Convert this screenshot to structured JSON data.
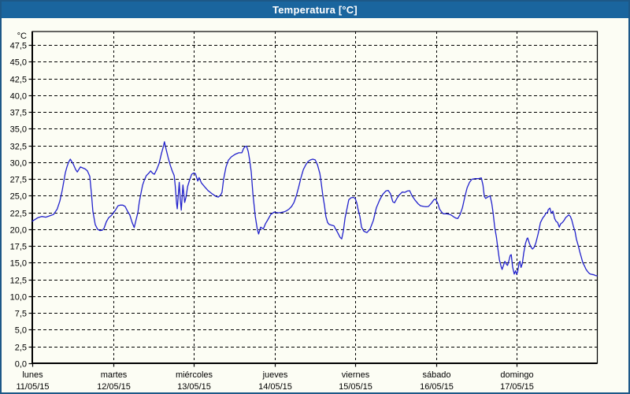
{
  "window": {
    "title": "Temperatura [°C]"
  },
  "colors": {
    "titlebar_bg": "#1a659e",
    "titlebar_text": "#ffffff",
    "window_border": "#1d5887",
    "background": "#fcfdf4",
    "plot_border": "#000000",
    "gridline": "#000000",
    "series_line": "#2222cc",
    "label_text": "#000000"
  },
  "chart_data": {
    "type": "line",
    "title": "Temperatura [°C]",
    "legend": "none",
    "y_axis": {
      "unit_label": "°C",
      "min": 0,
      "max": 49.5,
      "tick_step": 2.5,
      "grid": "dashed",
      "tick_values": [
        0,
        2.5,
        5,
        7.5,
        10,
        12.5,
        15,
        17.5,
        20,
        22.5,
        25,
        27.5,
        30,
        32.5,
        35,
        37.5,
        40,
        42.5,
        45,
        47.5
      ],
      "tick_labels": [
        "0,0",
        "2,5",
        "5,0",
        "7,5",
        "10,0",
        "12,5",
        "15,0",
        "17,5",
        "20,0",
        "22,5",
        "25,0",
        "27,5",
        "30,0",
        "32,5",
        "35,0",
        "37,5",
        "40,0",
        "42,5",
        "45,0",
        "47,5"
      ]
    },
    "x_axis": {
      "range_hours": [
        0,
        168
      ],
      "tick_interval_hours": 24,
      "grid": "dashed",
      "ticks": [
        {
          "hour": 0,
          "day": "lunes",
          "date": "11/05/15"
        },
        {
          "hour": 24,
          "day": "martes",
          "date": "12/05/15"
        },
        {
          "hour": 48,
          "day": "miércoles",
          "date": "13/05/15"
        },
        {
          "hour": 72,
          "day": "jueves",
          "date": "14/05/15"
        },
        {
          "hour": 96,
          "day": "viernes",
          "date": "15/05/15"
        },
        {
          "hour": 120,
          "day": "sábado",
          "date": "16/05/15"
        },
        {
          "hour": 144,
          "day": "domingo",
          "date": "17/05/15"
        }
      ]
    },
    "series": [
      {
        "name": "Temperatura",
        "unit": "°C",
        "color": "#2222cc",
        "points": [
          [
            0.0,
            21.2
          ],
          [
            1.6,
            21.7
          ],
          [
            2.8,
            21.9
          ],
          [
            4.0,
            21.8
          ],
          [
            5.2,
            22.0
          ],
          [
            6.3,
            22.2
          ],
          [
            7.4,
            23.0
          ],
          [
            8.2,
            24.2
          ],
          [
            8.9,
            25.8
          ],
          [
            9.4,
            27.2
          ],
          [
            9.8,
            28.4
          ],
          [
            10.3,
            29.3
          ],
          [
            10.8,
            30.0
          ],
          [
            11.3,
            30.45
          ],
          [
            12.2,
            29.7
          ],
          [
            12.9,
            28.9
          ],
          [
            13.4,
            28.55
          ],
          [
            14.3,
            29.3
          ],
          [
            15.0,
            29.15
          ],
          [
            15.7,
            29.0
          ],
          [
            16.4,
            28.7
          ],
          [
            17.1,
            27.9
          ],
          [
            17.6,
            25.2
          ],
          [
            18.0,
            22.7
          ],
          [
            18.7,
            20.7
          ],
          [
            19.4,
            20.0
          ],
          [
            20.1,
            19.8
          ],
          [
            20.8,
            19.85
          ],
          [
            21.3,
            20.1
          ],
          [
            22.0,
            21.1
          ],
          [
            22.7,
            21.7
          ],
          [
            23.4,
            22.0
          ],
          [
            23.9,
            22.3
          ],
          [
            24.8,
            22.9
          ],
          [
            25.5,
            23.5
          ],
          [
            26.2,
            23.6
          ],
          [
            26.9,
            23.6
          ],
          [
            27.6,
            23.4
          ],
          [
            28.3,
            22.7
          ],
          [
            29.0,
            22.1
          ],
          [
            29.7,
            21.0
          ],
          [
            30.3,
            20.25
          ],
          [
            30.9,
            21.5
          ],
          [
            31.4,
            22.5
          ],
          [
            31.8,
            24.0
          ],
          [
            32.3,
            25.3
          ],
          [
            32.8,
            26.6
          ],
          [
            33.3,
            27.3
          ],
          [
            33.9,
            28.0
          ],
          [
            34.7,
            28.4
          ],
          [
            35.2,
            28.7
          ],
          [
            35.8,
            28.35
          ],
          [
            36.3,
            28.2
          ],
          [
            37.0,
            28.9
          ],
          [
            37.7,
            29.8
          ],
          [
            38.4,
            31.3
          ],
          [
            39.0,
            32.4
          ],
          [
            39.3,
            33.05
          ],
          [
            39.8,
            31.9
          ],
          [
            40.4,
            30.7
          ],
          [
            41.0,
            29.6
          ],
          [
            41.6,
            28.7
          ],
          [
            42.2,
            28.0
          ],
          [
            42.5,
            26.5
          ],
          [
            42.9,
            23.9
          ],
          [
            43.1,
            23.05
          ],
          [
            43.7,
            27.0
          ],
          [
            44.0,
            24.5
          ],
          [
            44.3,
            22.85
          ],
          [
            44.8,
            26.6
          ],
          [
            45.3,
            24.0
          ],
          [
            45.7,
            24.8
          ],
          [
            46.2,
            26.4
          ],
          [
            46.8,
            27.4
          ],
          [
            47.4,
            28.2
          ],
          [
            48.0,
            28.4
          ],
          [
            48.5,
            28.3
          ],
          [
            49.2,
            27.2
          ],
          [
            49.6,
            27.7
          ],
          [
            50.3,
            26.9
          ],
          [
            51.3,
            26.3
          ],
          [
            52.2,
            25.8
          ],
          [
            53.4,
            25.3
          ],
          [
            54.6,
            24.9
          ],
          [
            55.3,
            24.8
          ],
          [
            56.0,
            25.1
          ],
          [
            56.4,
            25.5
          ],
          [
            56.9,
            27.5
          ],
          [
            57.6,
            29.3
          ],
          [
            58.3,
            30.3
          ],
          [
            59.2,
            30.8
          ],
          [
            60.4,
            31.2
          ],
          [
            61.4,
            31.4
          ],
          [
            62.3,
            31.4
          ],
          [
            62.8,
            32.0
          ],
          [
            63.2,
            32.3
          ],
          [
            63.7,
            32.4
          ],
          [
            64.2,
            31.6
          ],
          [
            64.6,
            30.4
          ],
          [
            65.1,
            28.6
          ],
          [
            65.6,
            25.2
          ],
          [
            66.3,
            21.9
          ],
          [
            66.9,
            20.0
          ],
          [
            67.3,
            19.3
          ],
          [
            67.9,
            20.3
          ],
          [
            68.7,
            20.05
          ],
          [
            69.3,
            20.8
          ],
          [
            70.0,
            21.4
          ],
          [
            70.9,
            22.2
          ],
          [
            71.9,
            22.55
          ],
          [
            73.1,
            22.45
          ],
          [
            74.0,
            22.5
          ],
          [
            74.9,
            22.6
          ],
          [
            75.6,
            22.75
          ],
          [
            76.3,
            23.0
          ],
          [
            77.1,
            23.4
          ],
          [
            77.8,
            24.0
          ],
          [
            78.5,
            25.0
          ],
          [
            79.2,
            26.3
          ],
          [
            79.9,
            27.7
          ],
          [
            80.6,
            28.9
          ],
          [
            81.3,
            29.6
          ],
          [
            82.0,
            30.1
          ],
          [
            82.7,
            30.35
          ],
          [
            83.4,
            30.45
          ],
          [
            84.1,
            30.35
          ],
          [
            84.8,
            29.6
          ],
          [
            85.5,
            28.3
          ],
          [
            85.9,
            26.9
          ],
          [
            86.4,
            25.0
          ],
          [
            86.9,
            23.5
          ],
          [
            87.3,
            21.9
          ],
          [
            87.8,
            21.0
          ],
          [
            88.3,
            20.7
          ],
          [
            89.0,
            20.6
          ],
          [
            89.7,
            20.5
          ],
          [
            90.1,
            20.1
          ],
          [
            90.8,
            19.5
          ],
          [
            91.5,
            18.8
          ],
          [
            92.0,
            18.55
          ],
          [
            92.5,
            19.8
          ],
          [
            93.0,
            21.7
          ],
          [
            93.7,
            23.4
          ],
          [
            94.1,
            24.4
          ],
          [
            94.8,
            24.7
          ],
          [
            95.5,
            24.75
          ],
          [
            96.0,
            24.6
          ],
          [
            96.5,
            23.9
          ],
          [
            96.9,
            22.9
          ],
          [
            97.4,
            21.9
          ],
          [
            97.9,
            20.3
          ],
          [
            98.6,
            19.7
          ],
          [
            99.5,
            19.5
          ],
          [
            100.4,
            20.0
          ],
          [
            101.4,
            21.3
          ],
          [
            102.3,
            23.2
          ],
          [
            103.3,
            24.4
          ],
          [
            104.2,
            25.2
          ],
          [
            105.1,
            25.7
          ],
          [
            105.8,
            25.8
          ],
          [
            106.5,
            25.3
          ],
          [
            107.2,
            24.1
          ],
          [
            107.7,
            23.95
          ],
          [
            108.4,
            24.6
          ],
          [
            109.1,
            25.1
          ],
          [
            110.0,
            25.55
          ],
          [
            110.8,
            25.5
          ],
          [
            111.5,
            25.7
          ],
          [
            112.2,
            25.75
          ],
          [
            112.9,
            25.0
          ],
          [
            113.8,
            24.35
          ],
          [
            114.7,
            23.8
          ],
          [
            115.4,
            23.5
          ],
          [
            116.4,
            23.4
          ],
          [
            117.1,
            23.35
          ],
          [
            117.8,
            23.4
          ],
          [
            118.7,
            23.9
          ],
          [
            119.4,
            24.4
          ],
          [
            119.9,
            24.5
          ],
          [
            120.6,
            23.8
          ],
          [
            121.1,
            23.0
          ],
          [
            121.8,
            22.5
          ],
          [
            122.2,
            22.3
          ],
          [
            123.2,
            22.3
          ],
          [
            123.9,
            22.25
          ],
          [
            124.6,
            22.1
          ],
          [
            125.3,
            21.85
          ],
          [
            126.0,
            21.65
          ],
          [
            126.5,
            21.6
          ],
          [
            127.2,
            22.2
          ],
          [
            127.9,
            23.2
          ],
          [
            128.6,
            24.8
          ],
          [
            129.3,
            26.2
          ],
          [
            130.0,
            27.0
          ],
          [
            130.7,
            27.45
          ],
          [
            131.6,
            27.55
          ],
          [
            132.6,
            27.55
          ],
          [
            133.5,
            27.65
          ],
          [
            134.0,
            26.6
          ],
          [
            134.4,
            24.9
          ],
          [
            134.8,
            24.6
          ],
          [
            135.4,
            24.8
          ],
          [
            136.1,
            25.0
          ],
          [
            136.6,
            23.9
          ],
          [
            137.0,
            22.5
          ],
          [
            137.5,
            20.3
          ],
          [
            138.0,
            18.8
          ],
          [
            138.4,
            17.2
          ],
          [
            138.9,
            15.4
          ],
          [
            139.4,
            14.4
          ],
          [
            139.7,
            14.0
          ],
          [
            140.1,
            14.6
          ],
          [
            140.5,
            15.2
          ],
          [
            141.0,
            14.75
          ],
          [
            141.3,
            14.6
          ],
          [
            141.7,
            15.3
          ],
          [
            142.1,
            16.1
          ],
          [
            142.4,
            16.2
          ],
          [
            142.8,
            14.4
          ],
          [
            143.3,
            13.3
          ],
          [
            143.7,
            13.8
          ],
          [
            144.0,
            13.3
          ],
          [
            144.3,
            13.6
          ],
          [
            144.7,
            14.9
          ],
          [
            145.0,
            15.2
          ],
          [
            145.3,
            14.3
          ],
          [
            145.7,
            14.9
          ],
          [
            146.1,
            16.4
          ],
          [
            146.6,
            17.8
          ],
          [
            147.1,
            18.6
          ],
          [
            147.3,
            18.7
          ],
          [
            147.8,
            17.9
          ],
          [
            148.3,
            17.3
          ],
          [
            148.7,
            17.05
          ],
          [
            149.2,
            17.3
          ],
          [
            149.7,
            17.9
          ],
          [
            150.4,
            19.3
          ],
          [
            151.1,
            21.0
          ],
          [
            151.8,
            21.7
          ],
          [
            152.3,
            22.0
          ],
          [
            152.7,
            22.4
          ],
          [
            153.2,
            22.5
          ],
          [
            153.4,
            22.9
          ],
          [
            153.9,
            23.15
          ],
          [
            154.3,
            22.4
          ],
          [
            154.8,
            22.7
          ],
          [
            155.3,
            21.6
          ],
          [
            155.7,
            21.2
          ],
          [
            156.2,
            21.0
          ],
          [
            156.7,
            20.3
          ],
          [
            157.1,
            20.8
          ],
          [
            157.6,
            21.0
          ],
          [
            158.1,
            21.3
          ],
          [
            158.6,
            21.75
          ],
          [
            159.0,
            21.9
          ],
          [
            159.5,
            22.15
          ],
          [
            160.0,
            21.9
          ],
          [
            160.4,
            21.4
          ],
          [
            160.9,
            20.4
          ],
          [
            161.4,
            19.6
          ],
          [
            161.8,
            18.5
          ],
          [
            162.3,
            17.6
          ],
          [
            162.8,
            16.6
          ],
          [
            163.2,
            15.9
          ],
          [
            163.7,
            15.0
          ],
          [
            164.2,
            14.5
          ],
          [
            164.6,
            14.05
          ],
          [
            165.1,
            13.7
          ],
          [
            165.6,
            13.4
          ],
          [
            166.0,
            13.3
          ],
          [
            166.5,
            13.25
          ],
          [
            167.0,
            13.2
          ],
          [
            167.4,
            13.1
          ],
          [
            167.9,
            13.05
          ]
        ]
      }
    ]
  }
}
